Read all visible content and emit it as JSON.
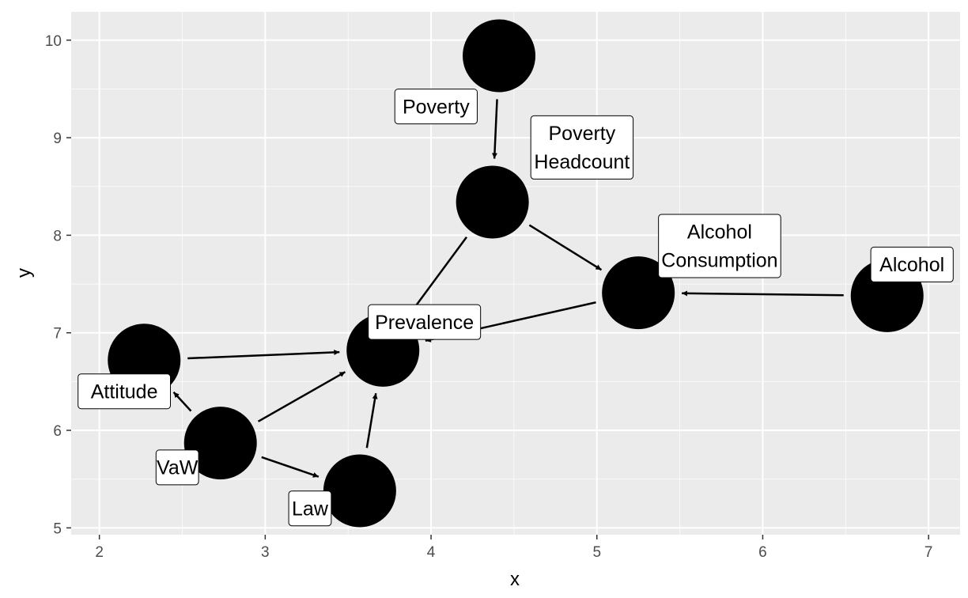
{
  "chart_data": {
    "type": "scatter",
    "title": "",
    "xlabel": "x",
    "ylabel": "y",
    "xlim": [
      1.83,
      7.19
    ],
    "ylim": [
      4.93,
      10.29
    ],
    "xticks": [
      2,
      3,
      4,
      5,
      6,
      7
    ],
    "yticks": [
      5,
      6,
      7,
      8,
      9,
      10
    ],
    "grid": true,
    "legend": "none",
    "colors": {
      "panel": "#ebebeb",
      "grid_major": "#ffffff",
      "node": "#000000",
      "edge": "#000000",
      "label_fill": "#ffffff",
      "label_border": "#000000"
    },
    "nodes": [
      {
        "id": "poverty",
        "label": [
          "Poverty"
        ],
        "x": 4.41,
        "y": 9.84
      },
      {
        "id": "poverty_headcount",
        "label": [
          "Poverty",
          "Headcount"
        ],
        "x": 4.37,
        "y": 8.34
      },
      {
        "id": "alcohol_consumption",
        "label": [
          "Alcohol",
          "Consumption"
        ],
        "x": 5.25,
        "y": 7.41
      },
      {
        "id": "alcohol",
        "label": [
          "Alcohol"
        ],
        "x": 6.75,
        "y": 7.38
      },
      {
        "id": "prevalence",
        "label": [
          "Prevalence"
        ],
        "x": 3.71,
        "y": 6.82
      },
      {
        "id": "attitude",
        "label": [
          "Attitude"
        ],
        "x": 2.27,
        "y": 6.72
      },
      {
        "id": "vaw",
        "label": [
          "VaW"
        ],
        "x": 2.73,
        "y": 5.87
      },
      {
        "id": "law",
        "label": [
          "Law"
        ],
        "x": 3.57,
        "y": 5.38
      }
    ],
    "label_positions": [
      {
        "id": "poverty",
        "x": 4.03,
        "y": 9.32
      },
      {
        "id": "poverty_headcount",
        "x": 4.91,
        "y": 8.9
      },
      {
        "id": "alcohol_consumption",
        "x": 5.74,
        "y": 7.89
      },
      {
        "id": "alcohol",
        "x": 6.9,
        "y": 7.7
      },
      {
        "id": "prevalence",
        "x": 3.96,
        "y": 7.11
      },
      {
        "id": "attitude",
        "x": 2.15,
        "y": 6.4
      },
      {
        "id": "vaw",
        "x": 2.47,
        "y": 5.62
      },
      {
        "id": "law",
        "x": 3.27,
        "y": 5.2
      }
    ],
    "edges": [
      {
        "from": "poverty",
        "to": "poverty_headcount"
      },
      {
        "from": "poverty_headcount",
        "to": "alcohol_consumption"
      },
      {
        "from": "poverty_headcount",
        "to": "prevalence"
      },
      {
        "from": "alcohol",
        "to": "alcohol_consumption"
      },
      {
        "from": "alcohol_consumption",
        "to": "prevalence"
      },
      {
        "from": "attitude",
        "to": "prevalence"
      },
      {
        "from": "vaw",
        "to": "attitude"
      },
      {
        "from": "vaw",
        "to": "prevalence"
      },
      {
        "from": "vaw",
        "to": "law"
      },
      {
        "from": "law",
        "to": "prevalence"
      }
    ]
  }
}
